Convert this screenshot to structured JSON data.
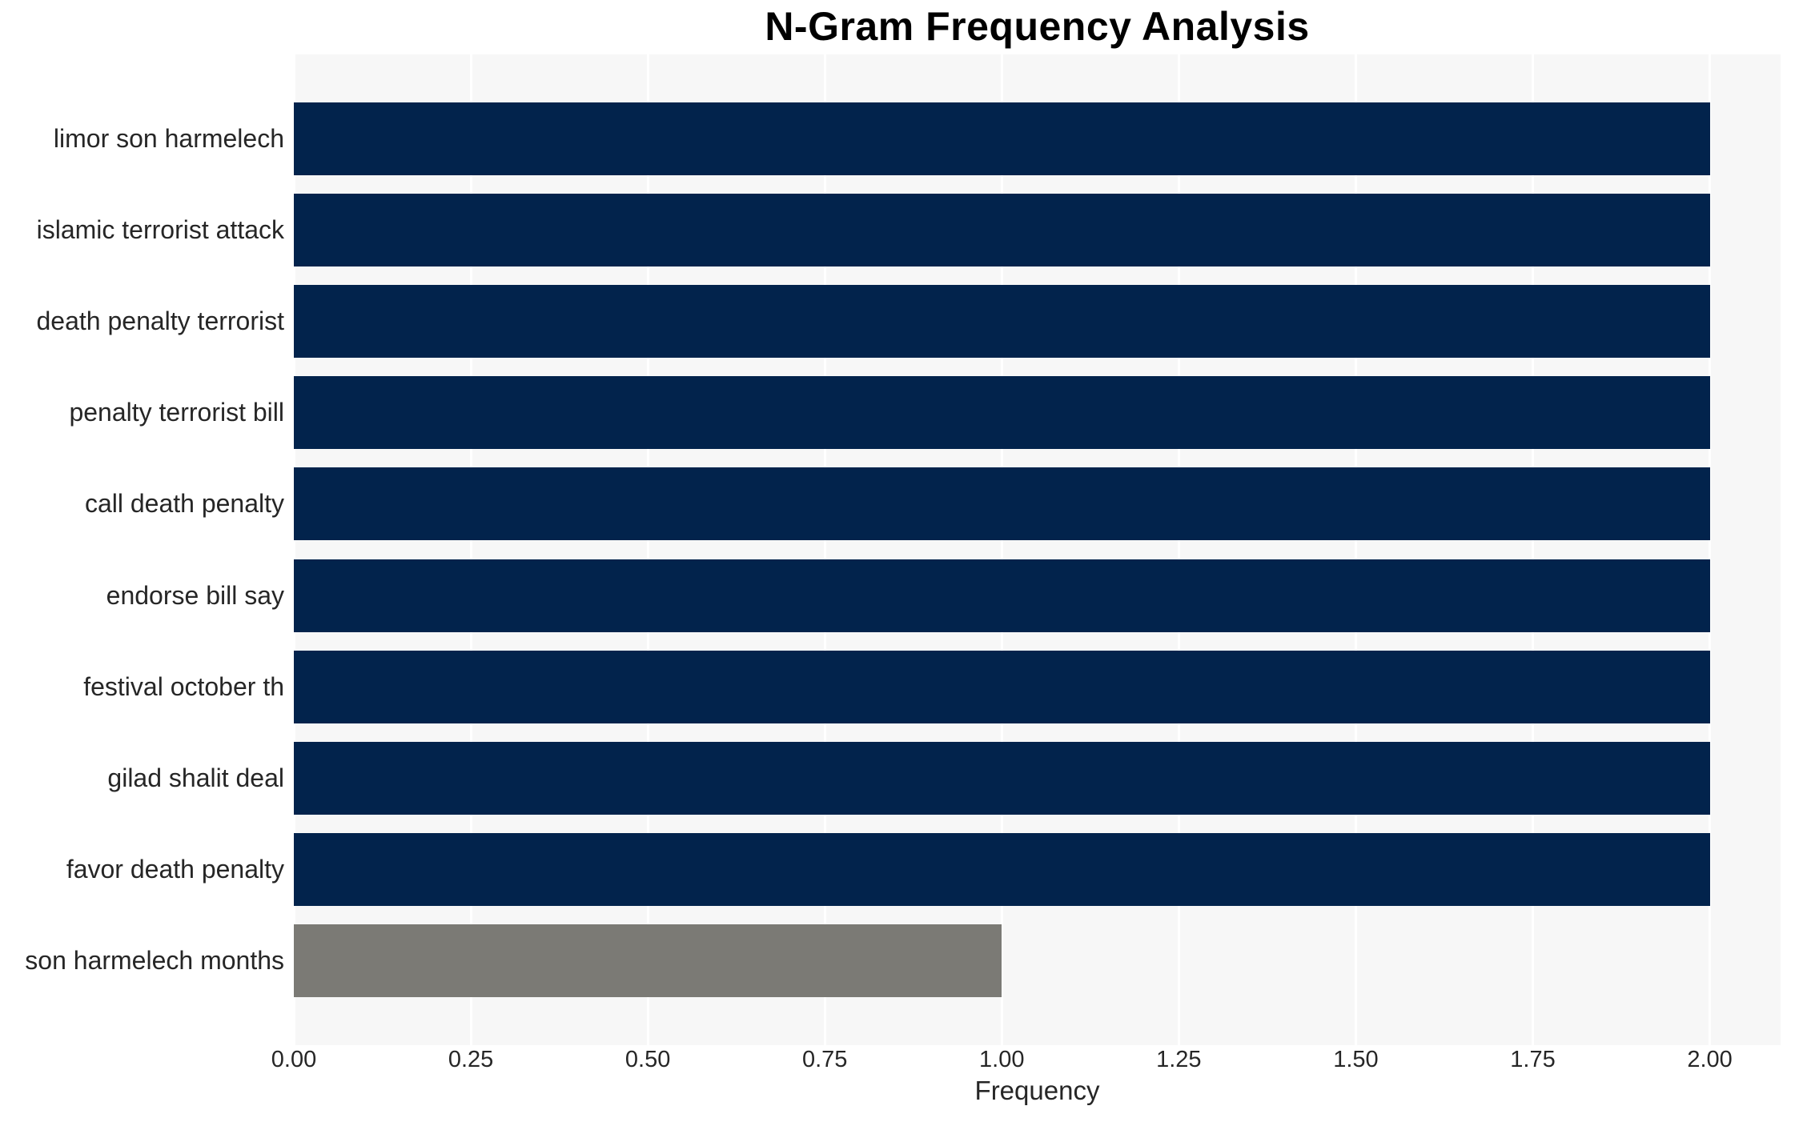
{
  "chart_data": {
    "type": "bar",
    "orientation": "horizontal",
    "title": "N-Gram Frequency Analysis",
    "xlabel": "Frequency",
    "ylabel": "",
    "categories": [
      "limor son harmelech",
      "islamic terrorist attack",
      "death penalty terrorist",
      "penalty terrorist bill",
      "call death penalty",
      "endorse bill say",
      "festival october th",
      "gilad shalit deal",
      "favor death penalty",
      "son harmelech months"
    ],
    "values": [
      2,
      2,
      2,
      2,
      2,
      2,
      2,
      2,
      2,
      1
    ],
    "xlim": [
      0,
      2.1
    ],
    "xtick_values": [
      0.0,
      0.25,
      0.5,
      0.75,
      1.0,
      1.25,
      1.5,
      1.75,
      2.0
    ],
    "xtick_labels": [
      "0.00",
      "0.25",
      "0.50",
      "0.75",
      "1.00",
      "1.25",
      "1.50",
      "1.75",
      "2.00"
    ],
    "bar_colors": [
      "#02234c",
      "#02234c",
      "#02234c",
      "#02234c",
      "#02234c",
      "#02234c",
      "#02234c",
      "#02234c",
      "#02234c",
      "#7b7a75"
    ],
    "grid": true,
    "legend": false,
    "colors": {
      "plot_background": "#f7f7f7",
      "gridline": "#ffffff",
      "tick_text": "#262626",
      "label_text": "#262626",
      "title_text": "#000000"
    }
  }
}
